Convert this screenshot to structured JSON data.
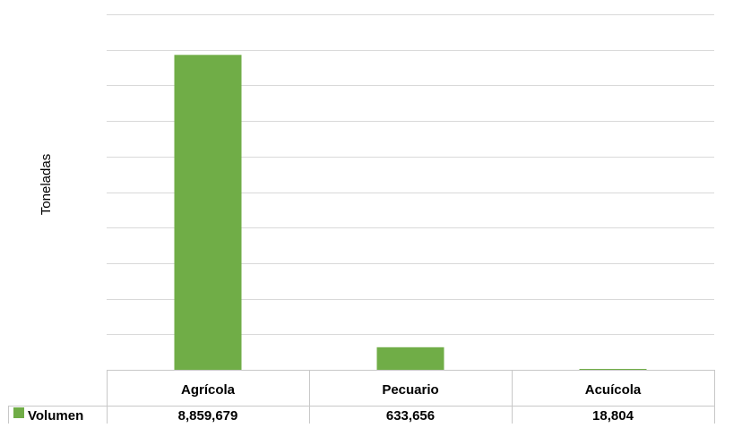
{
  "chart_data": {
    "type": "bar",
    "title": "",
    "xlabel": "",
    "ylabel": "Toneladas",
    "categories": [
      "Agrícola",
      "Pecuario",
      "Acuícola"
    ],
    "series": [
      {
        "name": "Volumen",
        "values": [
          8859679,
          633656,
          18804
        ],
        "value_labels": [
          "8,859,679",
          "633,656",
          "18,804"
        ],
        "color": "#70ad47"
      }
    ],
    "ylim": [
      0,
      10000000
    ],
    "y_gridline_step": 1000000,
    "y_tick_labels_visible": false,
    "grid": true,
    "legend": "data-table-left",
    "data_table": true
  }
}
